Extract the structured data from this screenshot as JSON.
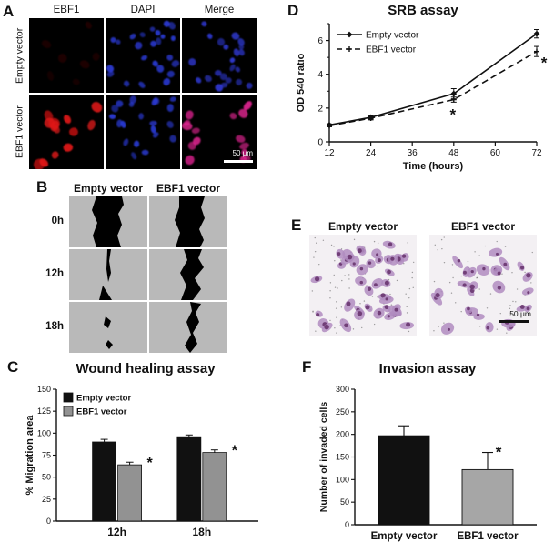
{
  "figure": {
    "panels": {
      "A": {
        "label": "A",
        "col_headers": [
          "EBF1",
          "DAPI",
          "Merge"
        ],
        "row_labels": [
          "Empty vector",
          "EBF1 vector"
        ],
        "scale_bar": "50 μm"
      },
      "B": {
        "label": "B",
        "col_headers": [
          "Empty vector",
          "EBF1 vector"
        ],
        "row_labels": [
          "0h",
          "12h",
          "18h"
        ]
      },
      "C": {
        "label": "C"
      },
      "D": {
        "label": "D"
      },
      "E": {
        "label": "E",
        "col_headers": [
          "Empty vector",
          "EBF1 vector"
        ],
        "scale_bar": "50 μm"
      },
      "F": {
        "label": "F"
      }
    }
  },
  "chart_data": [
    {
      "type": "line",
      "title": "SRB assay",
      "xlabel": "Time (hours)",
      "ylabel": "OD 540 ratio",
      "x": [
        12,
        24,
        48,
        72
      ],
      "xticks": [
        12,
        24,
        36,
        48,
        60,
        72
      ],
      "ylim": [
        0,
        7
      ],
      "yticks": [
        0,
        2,
        4,
        6
      ],
      "yminor": [
        1,
        3,
        5,
        7
      ],
      "series": [
        {
          "name": "Empty vector",
          "line": "solid",
          "values": [
            1.0,
            1.45,
            2.85,
            6.4
          ],
          "errors": [
            0.06,
            0.1,
            0.3,
            0.25
          ]
        },
        {
          "name": "EBF1 vector",
          "line": "dashed",
          "values": [
            0.95,
            1.4,
            2.5,
            5.35
          ],
          "errors": [
            0.06,
            0.1,
            0.15,
            0.3
          ]
        }
      ],
      "significant_points": {
        "series": "EBF1 vector",
        "x_indices": [
          2,
          3
        ]
      },
      "legend_position": "top-left"
    },
    {
      "type": "bar",
      "title": "Wound healing assay",
      "ylabel": "% Migration area",
      "ylim": [
        0,
        150
      ],
      "yticks": [
        0,
        25,
        50,
        75,
        100,
        125,
        150
      ],
      "categories": [
        "12h",
        "18h"
      ],
      "series": [
        {
          "name": "Empty vector",
          "color": "#111111",
          "values": [
            90,
            96
          ],
          "errors": [
            3,
            2
          ],
          "significant": [
            false,
            false
          ]
        },
        {
          "name": "EBF1 vector",
          "color": "#929292",
          "values": [
            64,
            78
          ],
          "errors": [
            3,
            3
          ],
          "significant": [
            true,
            true
          ]
        }
      ],
      "legend_position": "top-left"
    },
    {
      "type": "bar",
      "title": "Invasion assay",
      "ylabel": "Number of invaded cells",
      "ylim": [
        0,
        300
      ],
      "yticks": [
        0,
        50,
        100,
        150,
        200,
        250,
        300
      ],
      "categories": [
        "Empty vector",
        "EBF1 vector"
      ],
      "values": [
        197,
        122
      ],
      "errors": [
        22,
        38
      ],
      "colors": [
        "#111111",
        "#a6a6a6"
      ],
      "significant": [
        false,
        true
      ]
    }
  ],
  "colors": {
    "dapi_blue": "#2a3ad6",
    "ebf1_red": "#e01616",
    "merge_magenta": "#e02490",
    "invasion_purple": "#b08cc0",
    "empty_bar": "#111111",
    "ebf1_bar": "#a6a6a6"
  }
}
